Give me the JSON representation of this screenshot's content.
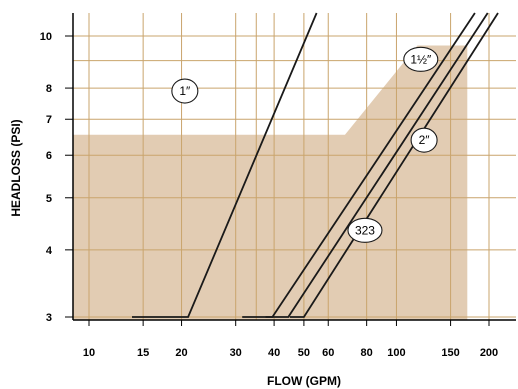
{
  "chart_data": {
    "type": "line",
    "title": "",
    "xlabel": "FLOW (GPM)",
    "ylabel": "HEADLOSS (PSI)",
    "xscale": "log",
    "yscale": "log",
    "grid": true,
    "x_ticks": [
      {
        "value": 10,
        "label": "10"
      },
      {
        "value": 15,
        "label": "15"
      },
      {
        "value": 20,
        "label": "20"
      },
      {
        "value": 30,
        "label": "30"
      },
      {
        "value": 40,
        "label": "40"
      },
      {
        "value": 50,
        "label": "50"
      },
      {
        "value": 60,
        "label": "60"
      },
      {
        "value": 80,
        "label": "80"
      },
      {
        "value": 100,
        "label": "100"
      },
      {
        "value": 150,
        "label": "150"
      },
      {
        "value": 200,
        "label": "200"
      }
    ],
    "y_ticks": [
      {
        "value": 3,
        "label": "3"
      },
      {
        "value": 4,
        "label": "4"
      },
      {
        "value": 5,
        "label": "5"
      },
      {
        "value": 6,
        "label": "6"
      },
      {
        "value": 7,
        "label": "7"
      },
      {
        "value": 8,
        "label": "8"
      },
      {
        "value": 10,
        "label": "10"
      }
    ],
    "series": [
      {
        "label": "1″",
        "label_at": [
          20.5,
          7.9
        ],
        "points": [
          [
            13.8,
            3
          ],
          [
            21,
            3
          ],
          [
            55,
            11.7
          ]
        ]
      },
      {
        "label": "1½″",
        "label_at": [
          120,
          9.05
        ],
        "points": [
          [
            31.5,
            3
          ],
          [
            39.5,
            3
          ],
          [
            180,
            11.7
          ]
        ]
      },
      {
        "label": "2″",
        "label_at": [
          123,
          6.4
        ],
        "points": [
          [
            37.5,
            3
          ],
          [
            44.5,
            3
          ],
          [
            198,
            11.7
          ]
        ]
      },
      {
        "label": "323",
        "label_at": [
          79,
          4.35
        ],
        "points": [
          [
            45,
            3
          ],
          [
            50,
            3
          ],
          [
            214,
            11.7
          ]
        ]
      }
    ],
    "shaded_region": {
      "color": "#e2ccb3",
      "boundary": [
        [
          10,
          3
        ],
        [
          10,
          6.55
        ],
        [
          68,
          6.55
        ],
        [
          117,
          9.6
        ],
        [
          170,
          9.6
        ],
        [
          170,
          3
        ]
      ]
    }
  }
}
